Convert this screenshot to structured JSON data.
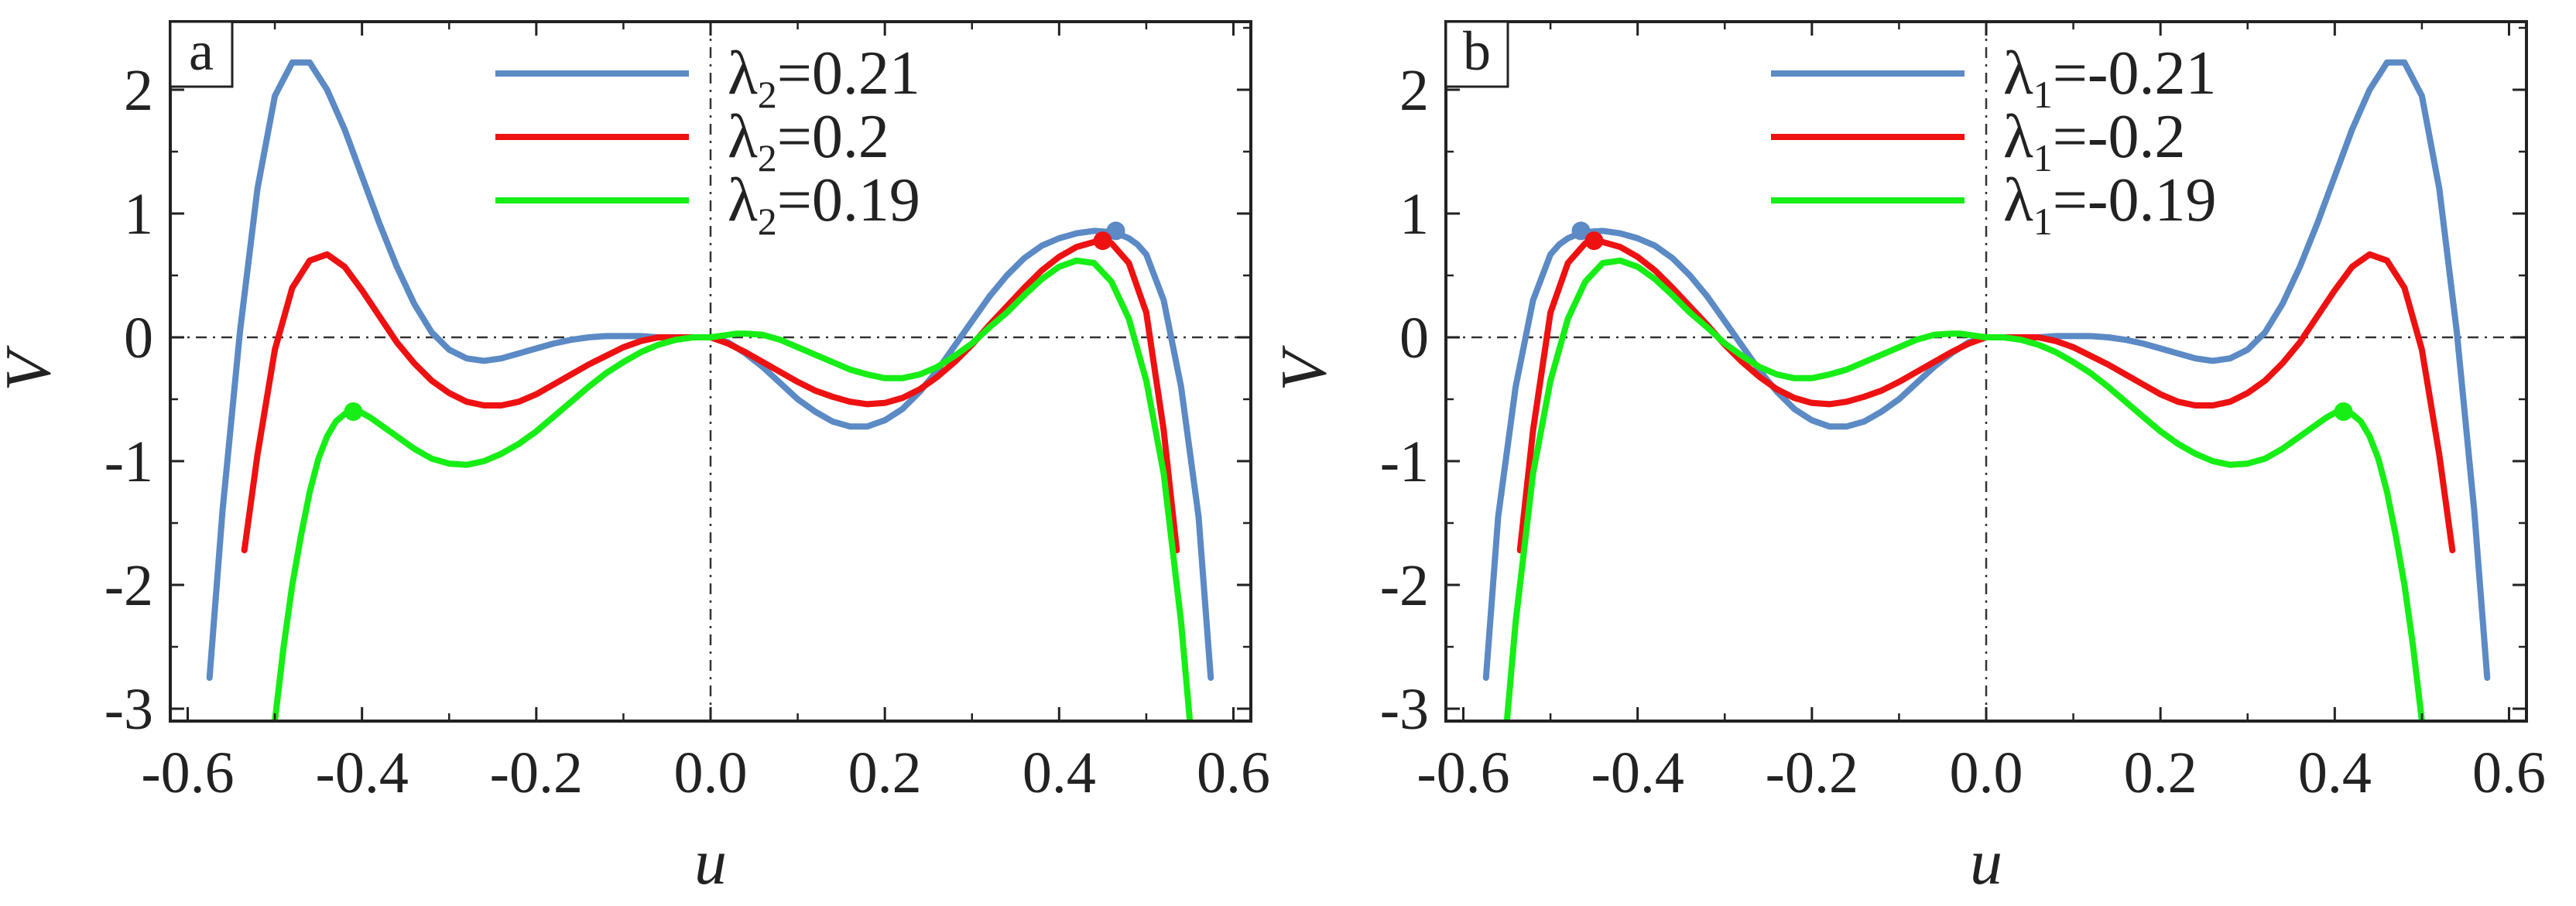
{
  "chart_data": [
    {
      "type": "line",
      "panel_label": "a",
      "xlabel": "u",
      "ylabel": "V",
      "xlim": [
        -0.62,
        0.62
      ],
      "ylim": [
        -3.1,
        2.55
      ],
      "xticks": [
        -0.6,
        -0.4,
        -0.2,
        0.0,
        0.2,
        0.4,
        0.6
      ],
      "xtick_labels": [
        "-0.6",
        "-0.4",
        "-0.2",
        "0.0",
        "0.2",
        "0.4",
        "0.6"
      ],
      "yticks": [
        -3,
        -2,
        -1,
        0,
        1,
        2
      ],
      "ytick_labels": [
        "-3",
        "-2",
        "-1",
        "0",
        "1",
        "2"
      ],
      "reference_lines": [
        "x = 0 dash-dot",
        "y = 0 dash-dot"
      ],
      "legend_position": "top-right",
      "series": [
        {
          "name": "λ2=0.21",
          "legend_symbol": "λ",
          "legend_sub": "2",
          "legend_value": "=0.21",
          "color": "#5b8ac5",
          "x": [
            -0.575,
            -0.56,
            -0.54,
            -0.52,
            -0.5,
            -0.48,
            -0.46,
            -0.44,
            -0.42,
            -0.4,
            -0.38,
            -0.36,
            -0.34,
            -0.32,
            -0.3,
            -0.28,
            -0.26,
            -0.24,
            -0.22,
            -0.2,
            -0.18,
            -0.16,
            -0.14,
            -0.12,
            -0.1,
            -0.08,
            -0.06,
            -0.04,
            -0.02,
            0.0,
            0.02,
            0.04,
            0.06,
            0.08,
            0.1,
            0.12,
            0.14,
            0.16,
            0.18,
            0.2,
            0.22,
            0.24,
            0.26,
            0.28,
            0.3,
            0.32,
            0.34,
            0.36,
            0.38,
            0.4,
            0.42,
            0.44,
            0.46,
            0.47,
            0.48,
            0.49,
            0.5,
            0.52,
            0.54,
            0.56,
            0.574
          ],
          "y": [
            -2.75,
            -1.4,
            0.05,
            1.2,
            1.95,
            2.22,
            2.22,
            2.0,
            1.68,
            1.3,
            0.92,
            0.57,
            0.27,
            0.04,
            -0.1,
            -0.17,
            -0.19,
            -0.17,
            -0.13,
            -0.09,
            -0.05,
            -0.02,
            0.0,
            0.01,
            0.01,
            0.01,
            0.0,
            0.0,
            0.0,
            0.0,
            -0.04,
            -0.13,
            -0.24,
            -0.37,
            -0.5,
            -0.6,
            -0.68,
            -0.72,
            -0.72,
            -0.67,
            -0.58,
            -0.44,
            -0.27,
            -0.07,
            0.13,
            0.33,
            0.5,
            0.64,
            0.74,
            0.8,
            0.84,
            0.86,
            0.85,
            0.83,
            0.8,
            0.75,
            0.67,
            0.3,
            -0.4,
            -1.45,
            -2.75
          ]
        },
        {
          "name": "λ2=0.2",
          "legend_symbol": "λ",
          "legend_sub": "2",
          "legend_value": "=0.2",
          "color": "#ee1111",
          "x": [
            -0.535,
            -0.52,
            -0.5,
            -0.48,
            -0.46,
            -0.44,
            -0.42,
            -0.4,
            -0.38,
            -0.36,
            -0.34,
            -0.32,
            -0.3,
            -0.28,
            -0.26,
            -0.24,
            -0.22,
            -0.2,
            -0.18,
            -0.16,
            -0.14,
            -0.12,
            -0.1,
            -0.08,
            -0.06,
            -0.04,
            -0.02,
            0.0,
            0.02,
            0.04,
            0.06,
            0.08,
            0.1,
            0.12,
            0.14,
            0.16,
            0.18,
            0.2,
            0.22,
            0.24,
            0.26,
            0.28,
            0.3,
            0.32,
            0.34,
            0.36,
            0.38,
            0.4,
            0.42,
            0.44,
            0.45,
            0.46,
            0.48,
            0.5,
            0.52,
            0.535
          ],
          "y": [
            -1.72,
            -0.95,
            -0.1,
            0.4,
            0.62,
            0.67,
            0.57,
            0.38,
            0.17,
            -0.04,
            -0.21,
            -0.35,
            -0.45,
            -0.52,
            -0.55,
            -0.55,
            -0.52,
            -0.46,
            -0.38,
            -0.3,
            -0.22,
            -0.15,
            -0.08,
            -0.03,
            0.0,
            0.0,
            0.0,
            0.0,
            -0.05,
            -0.12,
            -0.2,
            -0.28,
            -0.36,
            -0.43,
            -0.48,
            -0.52,
            -0.54,
            -0.53,
            -0.49,
            -0.42,
            -0.32,
            -0.2,
            -0.06,
            0.1,
            0.25,
            0.4,
            0.54,
            0.65,
            0.73,
            0.77,
            0.78,
            0.76,
            0.6,
            0.2,
            -0.75,
            -1.72
          ]
        },
        {
          "name": "λ2=0.19",
          "legend_symbol": "λ",
          "legend_sub": "2",
          "legend_value": "=0.19",
          "color": "#16ee16",
          "x": [
            -0.5,
            -0.49,
            -0.48,
            -0.47,
            -0.46,
            -0.45,
            -0.44,
            -0.43,
            -0.42,
            -0.41,
            -0.4,
            -0.39,
            -0.38,
            -0.36,
            -0.34,
            -0.32,
            -0.3,
            -0.28,
            -0.26,
            -0.24,
            -0.22,
            -0.2,
            -0.18,
            -0.16,
            -0.14,
            -0.12,
            -0.1,
            -0.08,
            -0.06,
            -0.04,
            -0.02,
            0.0,
            0.02,
            0.03,
            0.04,
            0.06,
            0.08,
            0.1,
            0.12,
            0.14,
            0.16,
            0.18,
            0.2,
            0.22,
            0.24,
            0.26,
            0.28,
            0.3,
            0.32,
            0.34,
            0.36,
            0.38,
            0.4,
            0.42,
            0.44,
            0.46,
            0.48,
            0.5,
            0.52,
            0.54,
            0.55
          ],
          "y": [
            -3.1,
            -2.5,
            -2.0,
            -1.6,
            -1.25,
            -0.98,
            -0.8,
            -0.68,
            -0.62,
            -0.6,
            -0.61,
            -0.65,
            -0.7,
            -0.8,
            -0.9,
            -0.98,
            -1.02,
            -1.03,
            -1.0,
            -0.94,
            -0.86,
            -0.76,
            -0.64,
            -0.52,
            -0.4,
            -0.29,
            -0.2,
            -0.12,
            -0.06,
            -0.02,
            0.0,
            0.0,
            0.02,
            0.03,
            0.03,
            0.02,
            -0.02,
            -0.08,
            -0.14,
            -0.2,
            -0.26,
            -0.3,
            -0.33,
            -0.33,
            -0.3,
            -0.24,
            -0.15,
            -0.05,
            0.08,
            0.2,
            0.34,
            0.47,
            0.57,
            0.62,
            0.6,
            0.45,
            0.15,
            -0.35,
            -1.1,
            -2.3,
            -3.1
          ]
        }
      ],
      "markers": [
        {
          "series": "λ2=0.21",
          "x": 0.465,
          "y": 0.86
        },
        {
          "series": "λ2=0.2",
          "x": 0.45,
          "y": 0.78
        },
        {
          "series": "λ2=0.19",
          "x": -0.41,
          "y": -0.6
        }
      ]
    },
    {
      "type": "line",
      "panel_label": "b",
      "xlabel": "u",
      "ylabel": "V",
      "xlim": [
        -0.62,
        0.62
      ],
      "ylim": [
        -3.1,
        2.55
      ],
      "xticks": [
        -0.6,
        -0.4,
        -0.2,
        0.0,
        0.2,
        0.4,
        0.6
      ],
      "xtick_labels": [
        "-0.6",
        "-0.4",
        "-0.2",
        "0.0",
        "0.2",
        "0.4",
        "0.6"
      ],
      "yticks": [
        -3,
        -2,
        -1,
        0,
        1,
        2
      ],
      "ytick_labels": [
        "-3",
        "-2",
        "-1",
        "0",
        "1",
        "2"
      ],
      "reference_lines": [
        "x = 0 dash-dot",
        "y = 0 dash-dot"
      ],
      "legend_position": "top-right",
      "series": [
        {
          "name": "λ1=-0.21",
          "legend_symbol": "λ",
          "legend_sub": "1",
          "legend_value": "=-0.21",
          "color": "#5b8ac5",
          "x": [
            -0.574,
            -0.56,
            -0.54,
            -0.52,
            -0.5,
            -0.49,
            -0.48,
            -0.47,
            -0.46,
            -0.44,
            -0.42,
            -0.4,
            -0.38,
            -0.36,
            -0.34,
            -0.32,
            -0.3,
            -0.28,
            -0.26,
            -0.24,
            -0.22,
            -0.2,
            -0.18,
            -0.16,
            -0.14,
            -0.12,
            -0.1,
            -0.08,
            -0.06,
            -0.04,
            -0.02,
            0.0,
            0.02,
            0.04,
            0.06,
            0.08,
            0.1,
            0.12,
            0.14,
            0.16,
            0.18,
            0.2,
            0.22,
            0.24,
            0.26,
            0.28,
            0.3,
            0.32,
            0.34,
            0.36,
            0.38,
            0.4,
            0.42,
            0.44,
            0.46,
            0.48,
            0.5,
            0.52,
            0.54,
            0.56,
            0.575
          ],
          "y": [
            -2.75,
            -1.45,
            -0.4,
            0.3,
            0.67,
            0.75,
            0.8,
            0.83,
            0.85,
            0.86,
            0.84,
            0.8,
            0.74,
            0.64,
            0.5,
            0.33,
            0.13,
            -0.07,
            -0.27,
            -0.44,
            -0.58,
            -0.67,
            -0.72,
            -0.72,
            -0.68,
            -0.6,
            -0.5,
            -0.37,
            -0.24,
            -0.13,
            -0.04,
            0.0,
            0.0,
            0.0,
            0.0,
            0.01,
            0.01,
            0.01,
            0.0,
            -0.02,
            -0.05,
            -0.09,
            -0.13,
            -0.17,
            -0.19,
            -0.17,
            -0.1,
            0.04,
            0.27,
            0.57,
            0.92,
            1.3,
            1.68,
            2.0,
            2.22,
            2.22,
            1.95,
            1.2,
            0.05,
            -1.4,
            -2.75
          ]
        },
        {
          "name": "λ1=-0.2",
          "legend_symbol": "λ",
          "legend_sub": "1",
          "legend_value": "=-0.2",
          "color": "#ee1111",
          "x": [
            -0.535,
            -0.52,
            -0.5,
            -0.48,
            -0.46,
            -0.45,
            -0.44,
            -0.42,
            -0.4,
            -0.38,
            -0.36,
            -0.34,
            -0.32,
            -0.3,
            -0.28,
            -0.26,
            -0.24,
            -0.22,
            -0.2,
            -0.18,
            -0.16,
            -0.14,
            -0.12,
            -0.1,
            -0.08,
            -0.06,
            -0.04,
            -0.02,
            0.0,
            0.02,
            0.04,
            0.06,
            0.08,
            0.1,
            0.12,
            0.14,
            0.16,
            0.18,
            0.2,
            0.22,
            0.24,
            0.26,
            0.28,
            0.3,
            0.32,
            0.34,
            0.36,
            0.38,
            0.4,
            0.42,
            0.44,
            0.46,
            0.48,
            0.5,
            0.52,
            0.535
          ],
          "y": [
            -1.72,
            -0.75,
            0.2,
            0.6,
            0.76,
            0.78,
            0.77,
            0.73,
            0.65,
            0.54,
            0.4,
            0.25,
            0.1,
            -0.06,
            -0.2,
            -0.32,
            -0.42,
            -0.49,
            -0.53,
            -0.54,
            -0.52,
            -0.48,
            -0.43,
            -0.36,
            -0.28,
            -0.2,
            -0.12,
            -0.05,
            0.0,
            0.0,
            0.0,
            0.0,
            -0.03,
            -0.08,
            -0.15,
            -0.22,
            -0.3,
            -0.38,
            -0.46,
            -0.52,
            -0.55,
            -0.55,
            -0.52,
            -0.45,
            -0.35,
            -0.21,
            -0.04,
            0.17,
            0.38,
            0.57,
            0.67,
            0.62,
            0.4,
            -0.1,
            -0.95,
            -1.72
          ]
        },
        {
          "name": "λ1=-0.19",
          "legend_symbol": "λ",
          "legend_sub": "1",
          "legend_value": "=-0.19",
          "color": "#16ee16",
          "x": [
            -0.55,
            -0.54,
            -0.52,
            -0.5,
            -0.48,
            -0.46,
            -0.44,
            -0.42,
            -0.4,
            -0.38,
            -0.36,
            -0.34,
            -0.32,
            -0.3,
            -0.28,
            -0.26,
            -0.24,
            -0.22,
            -0.2,
            -0.18,
            -0.16,
            -0.14,
            -0.12,
            -0.1,
            -0.08,
            -0.06,
            -0.04,
            -0.03,
            -0.02,
            0.0,
            0.02,
            0.04,
            0.06,
            0.08,
            0.1,
            0.12,
            0.14,
            0.16,
            0.18,
            0.2,
            0.22,
            0.24,
            0.26,
            0.28,
            0.3,
            0.32,
            0.34,
            0.36,
            0.38,
            0.39,
            0.4,
            0.41,
            0.42,
            0.43,
            0.44,
            0.45,
            0.46,
            0.47,
            0.48,
            0.49,
            0.5
          ],
          "y": [
            -3.1,
            -2.3,
            -1.1,
            -0.35,
            0.15,
            0.45,
            0.6,
            0.62,
            0.57,
            0.47,
            0.34,
            0.2,
            0.08,
            -0.05,
            -0.15,
            -0.24,
            -0.3,
            -0.33,
            -0.33,
            -0.3,
            -0.26,
            -0.2,
            -0.14,
            -0.08,
            -0.02,
            0.02,
            0.03,
            0.03,
            0.02,
            0.0,
            0.0,
            -0.02,
            -0.06,
            -0.12,
            -0.2,
            -0.29,
            -0.4,
            -0.52,
            -0.64,
            -0.76,
            -0.86,
            -0.94,
            -1.0,
            -1.03,
            -1.02,
            -0.98,
            -0.9,
            -0.8,
            -0.7,
            -0.65,
            -0.61,
            -0.6,
            -0.62,
            -0.68,
            -0.8,
            -0.98,
            -1.25,
            -1.6,
            -2.0,
            -2.5,
            -3.1
          ]
        }
      ],
      "markers": [
        {
          "series": "λ1=-0.21",
          "x": -0.465,
          "y": 0.86
        },
        {
          "series": "λ1=-0.2",
          "x": -0.45,
          "y": 0.78
        },
        {
          "series": "λ1=-0.19",
          "x": 0.41,
          "y": -0.6
        }
      ]
    }
  ]
}
